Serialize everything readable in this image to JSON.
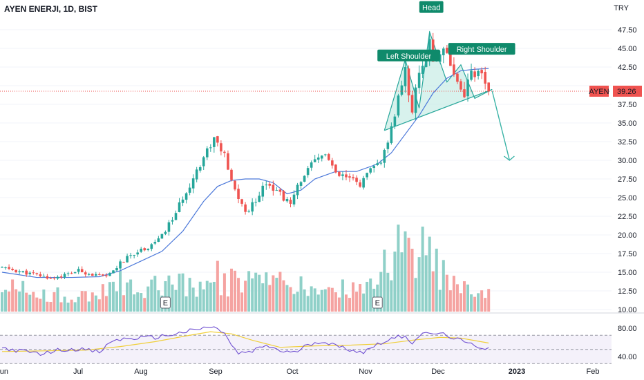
{
  "header": {
    "title": "AYEN ENERJI, 1D, BIST",
    "currency": "TRY"
  },
  "price_tag": {
    "symbol": "AYEN",
    "value": "39.26"
  },
  "colors": {
    "up": "#26a69a",
    "down": "#ef5350",
    "vol_up": "#8fd0c8",
    "vol_down": "#f5a3a1",
    "ma": "#4a77d9",
    "rsi": "#6f4fd1",
    "rsi_ma": "#f0cf3a",
    "pattern_fill": "#c8ece6",
    "pattern_line": "#26a69a",
    "label_bg": "#0f8a6b",
    "price_line": "#ef5350"
  },
  "chart_data": {
    "type": "candlestick",
    "title": "AYEN ENERJI, 1D, BIST",
    "price_axis": {
      "ticks": [
        "47.50",
        "45.00",
        "42.50",
        "40.00",
        "37.50",
        "35.00",
        "32.50",
        "30.00",
        "27.50",
        "25.00",
        "22.50",
        "20.00",
        "17.50",
        "15.00",
        "12.50",
        "10.00"
      ],
      "range": [
        9.7,
        49.0
      ]
    },
    "rsi_axis": {
      "ticks": [
        "80.00",
        "40.00"
      ],
      "band": [
        30,
        70
      ]
    },
    "time_axis": [
      "Jun",
      "Jul",
      "Aug",
      "Sep",
      "Oct",
      "Nov",
      "Dec",
      "2023",
      "Feb"
    ],
    "current_price": 39.26,
    "close_path": [
      [
        0,
        15.6
      ],
      [
        8,
        14.8
      ],
      [
        14,
        14.2
      ],
      [
        18,
        14.6
      ],
      [
        22,
        15.2
      ],
      [
        26,
        14.7
      ],
      [
        30,
        14.3
      ],
      [
        34,
        16.2
      ],
      [
        38,
        17.6
      ],
      [
        42,
        18.4
      ],
      [
        46,
        19.8
      ],
      [
        50,
        23.0
      ],
      [
        54,
        26.8
      ],
      [
        58,
        30.5
      ],
      [
        61,
        33.0
      ],
      [
        64,
        30.5
      ],
      [
        66,
        27.0
      ],
      [
        68,
        25.0
      ],
      [
        70,
        23.0
      ],
      [
        72,
        24.0
      ],
      [
        76,
        27.2
      ],
      [
        80,
        25.5
      ],
      [
        83,
        24.0
      ],
      [
        86,
        27.5
      ],
      [
        90,
        29.8
      ],
      [
        93,
        31.0
      ],
      [
        96,
        28.0
      ],
      [
        100,
        27.5
      ],
      [
        103,
        26.8
      ],
      [
        106,
        28.5
      ],
      [
        109,
        30.0
      ],
      [
        111,
        32.0
      ],
      [
        112,
        34.0
      ],
      [
        114,
        38.5
      ],
      [
        116,
        42.0
      ],
      [
        118,
        36.5
      ],
      [
        120,
        42.0
      ],
      [
        122,
        44.0
      ],
      [
        123,
        46.5
      ],
      [
        124,
        42.5
      ],
      [
        126,
        44.5
      ],
      [
        128,
        45.0
      ],
      [
        129,
        43.0
      ],
      [
        131,
        40.5
      ],
      [
        133,
        39.0
      ],
      [
        135,
        42.0
      ],
      [
        137,
        41.5
      ],
      [
        139,
        40.5
      ],
      [
        140,
        39.26
      ]
    ],
    "ma_path": [
      [
        0,
        15.0
      ],
      [
        10,
        14.3
      ],
      [
        20,
        14.3
      ],
      [
        28,
        14.4
      ],
      [
        34,
        15.2
      ],
      [
        40,
        16.5
      ],
      [
        46,
        17.8
      ],
      [
        52,
        20.5
      ],
      [
        58,
        24.5
      ],
      [
        62,
        26.5
      ],
      [
        66,
        27.3
      ],
      [
        70,
        27.5
      ],
      [
        74,
        27.5
      ],
      [
        78,
        27.0
      ],
      [
        82,
        25.5
      ],
      [
        86,
        26.0
      ],
      [
        90,
        27.5
      ],
      [
        96,
        28.5
      ],
      [
        102,
        28.5
      ],
      [
        108,
        29.5
      ],
      [
        112,
        31.0
      ],
      [
        116,
        33.5
      ],
      [
        120,
        36.0
      ],
      [
        124,
        39.0
      ],
      [
        128,
        41.0
      ],
      [
        132,
        42.0
      ],
      [
        136,
        42.2
      ],
      [
        140,
        42.3
      ]
    ],
    "rsi_path": [
      [
        0,
        52
      ],
      [
        6,
        47
      ],
      [
        12,
        44
      ],
      [
        16,
        49
      ],
      [
        22,
        51
      ],
      [
        28,
        46
      ],
      [
        32,
        63
      ],
      [
        38,
        66
      ],
      [
        44,
        67
      ],
      [
        50,
        72
      ],
      [
        56,
        78
      ],
      [
        60,
        82
      ],
      [
        64,
        74
      ],
      [
        66,
        55
      ],
      [
        68,
        44
      ],
      [
        72,
        47
      ],
      [
        76,
        56
      ],
      [
        80,
        48
      ],
      [
        84,
        45
      ],
      [
        88,
        57
      ],
      [
        92,
        62
      ],
      [
        96,
        55
      ],
      [
        100,
        50
      ],
      [
        104,
        46
      ],
      [
        108,
        58
      ],
      [
        112,
        65
      ],
      [
        116,
        70
      ],
      [
        118,
        59
      ],
      [
        120,
        70
      ],
      [
        124,
        73
      ],
      [
        128,
        70
      ],
      [
        130,
        66
      ],
      [
        134,
        58
      ],
      [
        138,
        53
      ],
      [
        140,
        52
      ]
    ],
    "rsi_ma_path": [
      [
        0,
        47
      ],
      [
        12,
        48
      ],
      [
        24,
        49
      ],
      [
        34,
        54
      ],
      [
        44,
        61
      ],
      [
        54,
        70
      ],
      [
        60,
        75
      ],
      [
        66,
        72
      ],
      [
        72,
        63
      ],
      [
        80,
        53
      ],
      [
        90,
        55
      ],
      [
        100,
        56
      ],
      [
        110,
        58
      ],
      [
        118,
        63
      ],
      [
        126,
        67
      ],
      [
        132,
        66
      ],
      [
        140,
        59
      ]
    ],
    "volume_profile": [
      [
        0,
        0.35
      ],
      [
        14,
        0.22
      ],
      [
        20,
        0.2
      ],
      [
        28,
        0.24
      ],
      [
        34,
        0.38
      ],
      [
        40,
        0.3
      ],
      [
        48,
        0.42
      ],
      [
        56,
        0.38
      ],
      [
        60,
        0.55
      ],
      [
        64,
        0.38
      ],
      [
        70,
        0.4
      ],
      [
        76,
        0.38
      ],
      [
        82,
        0.34
      ],
      [
        88,
        0.3
      ],
      [
        94,
        0.32
      ],
      [
        100,
        0.28
      ],
      [
        106,
        0.34
      ],
      [
        110,
        0.55
      ],
      [
        114,
        0.9
      ],
      [
        118,
        0.7
      ],
      [
        122,
        0.8
      ],
      [
        126,
        0.55
      ],
      [
        130,
        0.45
      ],
      [
        134,
        0.32
      ],
      [
        140,
        0.28
      ]
    ],
    "events": [
      {
        "label": "E",
        "bar": 47
      },
      {
        "label": "E",
        "bar": 108
      }
    ],
    "annotations": {
      "pattern": "head-and-shoulders",
      "points": [
        [
          110,
          34.0
        ],
        [
          116,
          43.5
        ],
        [
          120,
          37.0
        ],
        [
          123,
          47.2
        ],
        [
          128,
          40.5
        ],
        [
          132,
          42.8
        ],
        [
          136,
          38.3
        ],
        [
          141,
          39.5
        ]
      ],
      "target_arrow": [
        [
          141,
          39.3
        ],
        [
          146,
          30.0
        ]
      ],
      "labels": [
        {
          "text": "Left Shoulder",
          "bar": 117,
          "price": 44.0
        },
        {
          "text": "Head",
          "bar": 123.5,
          "price": 50.5
        },
        {
          "text": "Right Shoulder",
          "bar": 138,
          "price": 44.9
        }
      ]
    }
  }
}
